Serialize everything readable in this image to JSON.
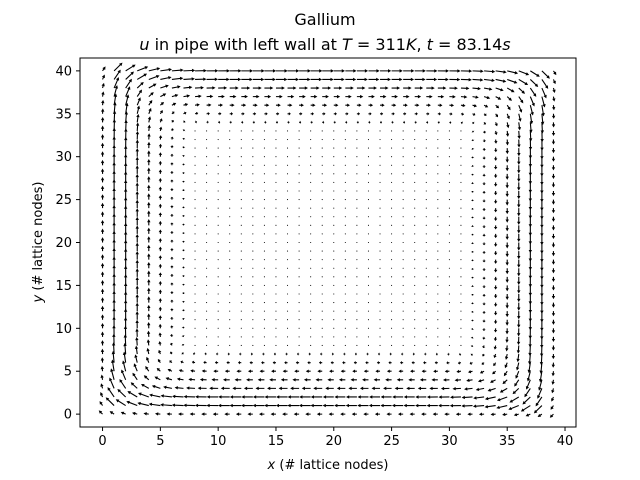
{
  "chart_data": {
    "type": "quiver",
    "title": "Gallium",
    "subtitle_parts": {
      "var": "u",
      "text1": " in pipe with left wall at ",
      "Tvar": "T",
      "Tval": " = 311",
      "Tunit": "K",
      "sep": ", ",
      "tvar": "t",
      "tval": " = 83.14",
      "tunit": "s"
    },
    "xlabel_var": "x",
    "xlabel": " (# lattice nodes)",
    "ylabel_var": "y",
    "ylabel": " (# lattice nodes)",
    "xlim": [
      -1.95,
      40.95
    ],
    "ylim": [
      -1.5,
      41.5
    ],
    "xticks": [
      0,
      5,
      10,
      15,
      20,
      25,
      30,
      35,
      40
    ],
    "yticks": [
      0,
      5,
      10,
      15,
      20,
      25,
      30,
      35,
      40
    ],
    "grid": {
      "nx": 40,
      "ny": 41,
      "x_start": 0,
      "y_start": 0,
      "step": 1
    },
    "field": {
      "description_free_params": true,
      "center": [
        19.5,
        20.5
      ],
      "shape": "rectangular clockwise vortex; maximum speed near the walls, near-zero speed in the core",
      "max_speed": 1.0
    },
    "arrow_color": "#000000"
  }
}
